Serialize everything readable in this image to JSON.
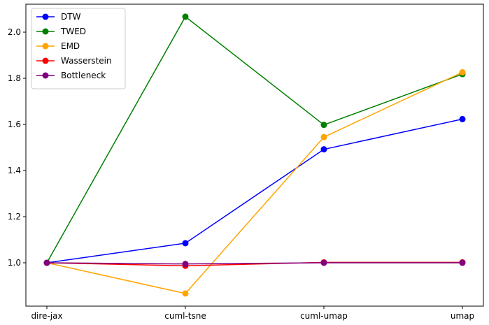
{
  "chart_data": {
    "type": "line",
    "title": "",
    "xlabel": "",
    "ylabel": "",
    "categories": [
      "dire-jax",
      "cuml-tsne",
      "cuml-umap",
      "umap"
    ],
    "ylim": [
      0.8,
      2.1
    ],
    "yticks": [
      "1.0",
      "1.2",
      "1.4",
      "1.6",
      "1.8",
      "2.0"
    ],
    "grid": false,
    "legend_position": "top-left",
    "series": [
      {
        "name": "DTW",
        "color": "#0000ff",
        "values": [
          1.0,
          1.085,
          1.492,
          1.623
        ]
      },
      {
        "name": "TWED",
        "color": "#008000",
        "values": [
          1.0,
          2.067,
          1.598,
          1.818
        ]
      },
      {
        "name": "EMD",
        "color": "#ffa500",
        "values": [
          1.0,
          0.867,
          1.545,
          1.826
        ]
      },
      {
        "name": "Wasserstein",
        "color": "#ff0000",
        "values": [
          1.0,
          0.987,
          1.002,
          1.002
        ]
      },
      {
        "name": "Bottleneck",
        "color": "#800080",
        "values": [
          1.0,
          0.995,
          1.0,
          1.0
        ]
      }
    ]
  }
}
